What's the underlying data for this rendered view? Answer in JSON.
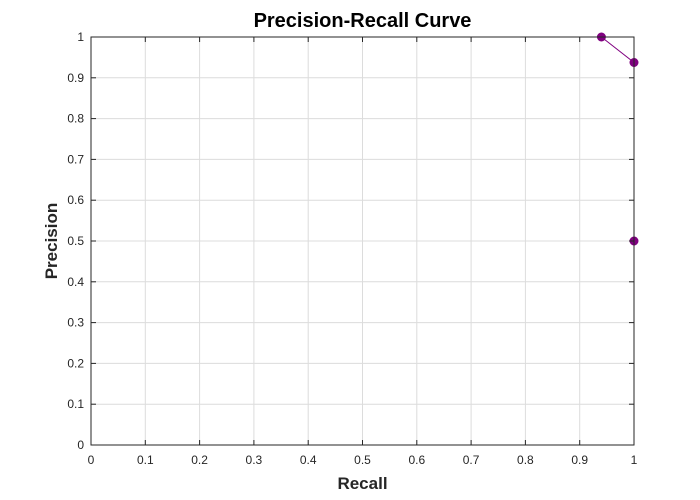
{
  "chart_data": {
    "type": "line",
    "title": "Precision-Recall Curve",
    "xlabel": "Recall",
    "ylabel": "Precision",
    "xlim": [
      0,
      1
    ],
    "ylim": [
      0,
      1
    ],
    "x_ticks": [
      "0",
      "0.1",
      "0.2",
      "0.3",
      "0.4",
      "0.5",
      "0.6",
      "0.7",
      "0.8",
      "0.9",
      "1"
    ],
    "y_ticks": [
      "0",
      "0.1",
      "0.2",
      "0.3",
      "0.4",
      "0.5",
      "0.6",
      "0.7",
      "0.8",
      "0.9",
      "1"
    ],
    "grid": true,
    "series": [
      {
        "color": "#800080",
        "marker": "circle",
        "points": [
          {
            "x": 0.94,
            "y": 1.0
          },
          {
            "x": 1.0,
            "y": 0.9375
          },
          {
            "x": 1.0,
            "y": 0.5
          }
        ]
      }
    ]
  }
}
